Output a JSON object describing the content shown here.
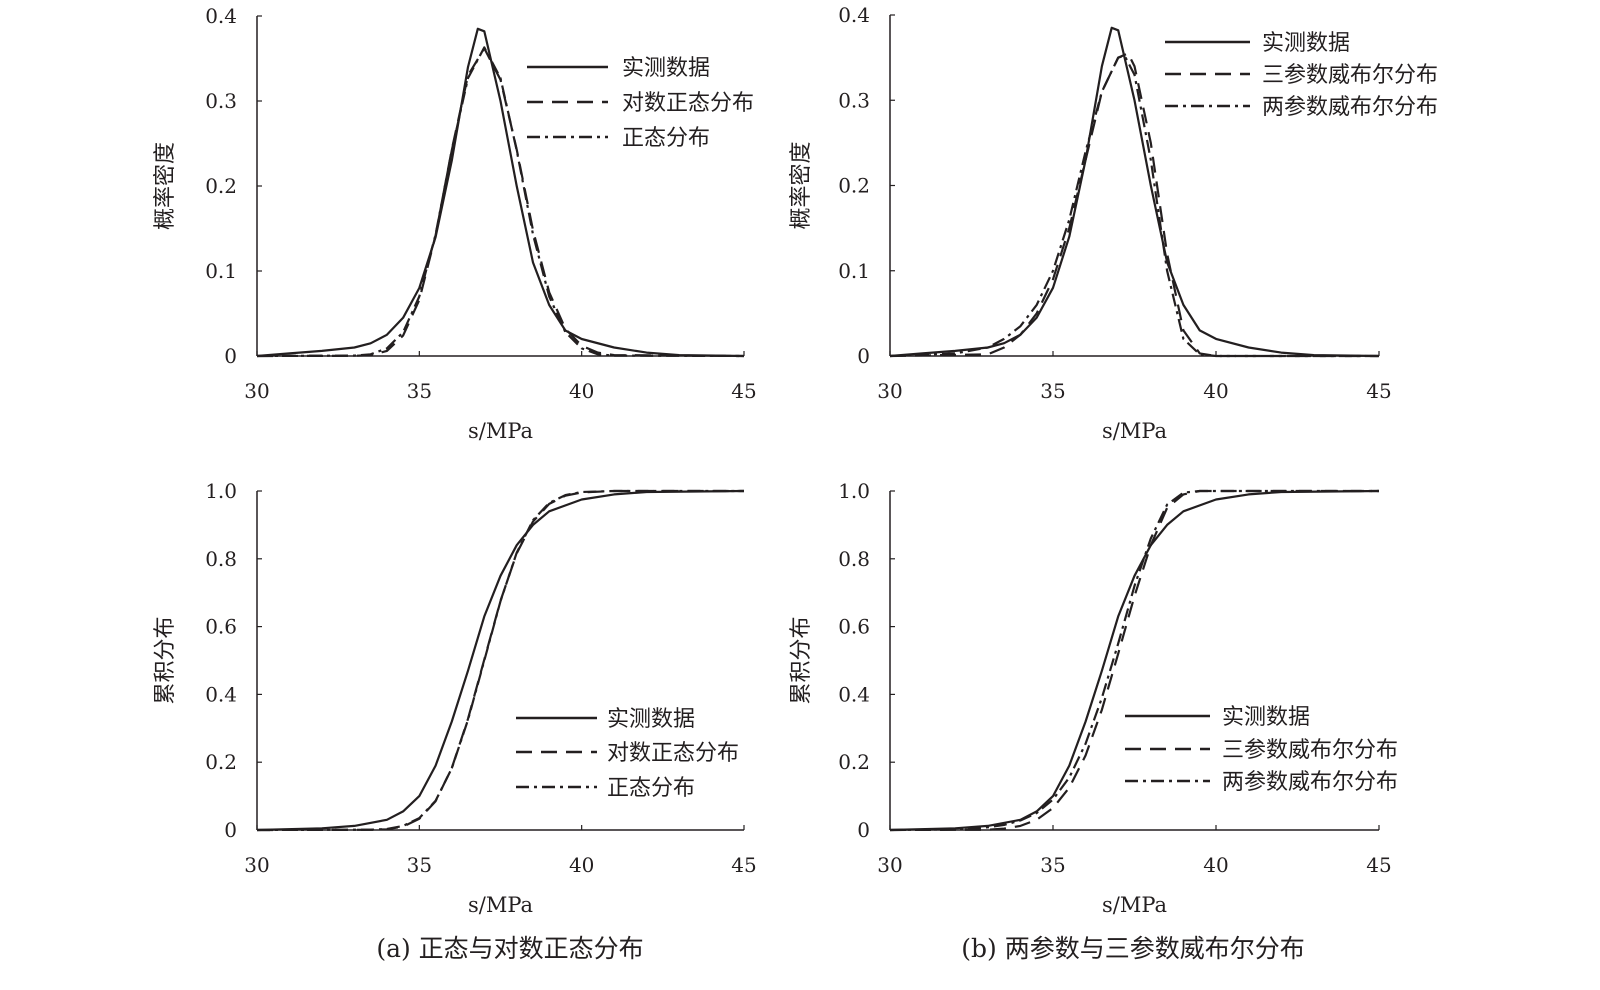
{
  "chart_data": [
    {
      "type": "line",
      "panel": "a-top",
      "xlabel": "s/MPa",
      "ylabel": "概率密度",
      "xlim": [
        30,
        45
      ],
      "ylim": [
        0,
        0.4
      ],
      "xticks": [
        "30",
        "35",
        "40",
        "45"
      ],
      "yticks": [
        "0",
        "0.1",
        "0.2",
        "0.3",
        "0.4"
      ],
      "legend_position": "top-right",
      "series": [
        {
          "name": "实测数据",
          "style": "solid",
          "x": [
            30,
            31,
            32,
            33,
            33.5,
            34,
            34.5,
            35,
            35.5,
            36,
            36.5,
            36.8,
            37,
            37.5,
            38,
            38.5,
            39,
            39.5,
            40,
            41,
            42,
            43,
            45
          ],
          "y": [
            0,
            0.003,
            0.006,
            0.01,
            0.015,
            0.025,
            0.045,
            0.08,
            0.14,
            0.23,
            0.34,
            0.385,
            0.382,
            0.3,
            0.2,
            0.11,
            0.06,
            0.03,
            0.02,
            0.01,
            0.004,
            0.001,
            0
          ]
        },
        {
          "name": "对数正态分布",
          "style": "dashed",
          "x": [
            30,
            33,
            33.5,
            34,
            34.5,
            35,
            35.5,
            36,
            36.5,
            37,
            37.5,
            38,
            38.5,
            39,
            39.5,
            40,
            40.5,
            41,
            45
          ],
          "y": [
            0,
            0.0002,
            0.001,
            0.006,
            0.024,
            0.066,
            0.142,
            0.243,
            0.33,
            0.362,
            0.325,
            0.243,
            0.148,
            0.075,
            0.032,
            0.012,
            0.004,
            0.001,
            0
          ]
        },
        {
          "name": "正态分布",
          "style": "dashdot",
          "x": [
            30,
            33,
            33.5,
            34,
            34.5,
            35,
            35.5,
            36,
            36.5,
            37,
            37.5,
            38,
            38.5,
            39,
            39.5,
            40,
            40.5,
            41,
            45
          ],
          "y": [
            0,
            0.0005,
            0.002,
            0.009,
            0.028,
            0.07,
            0.143,
            0.242,
            0.327,
            0.363,
            0.327,
            0.242,
            0.143,
            0.07,
            0.028,
            0.009,
            0.002,
            0.0005,
            0
          ]
        }
      ]
    },
    {
      "type": "line",
      "panel": "b-top",
      "xlabel": "s/MPa",
      "ylabel": "概率密度",
      "xlim": [
        30,
        45
      ],
      "ylim": [
        0,
        0.4
      ],
      "xticks": [
        "30",
        "35",
        "40",
        "45"
      ],
      "yticks": [
        "0",
        "0.1",
        "0.2",
        "0.3",
        "0.4"
      ],
      "legend_position": "top-right",
      "series": [
        {
          "name": "实测数据",
          "style": "solid",
          "x": [
            30,
            31,
            32,
            33,
            33.5,
            34,
            34.5,
            35,
            35.5,
            36,
            36.5,
            36.8,
            37,
            37.5,
            38,
            38.5,
            39,
            39.5,
            40,
            41,
            42,
            43,
            45
          ],
          "y": [
            0,
            0.003,
            0.006,
            0.01,
            0.015,
            0.025,
            0.045,
            0.08,
            0.14,
            0.23,
            0.34,
            0.385,
            0.382,
            0.3,
            0.2,
            0.11,
            0.06,
            0.03,
            0.02,
            0.01,
            0.004,
            0.001,
            0
          ]
        },
        {
          "name": "三参数威布尔分布",
          "style": "dashed",
          "x": [
            30,
            33,
            33.5,
            34,
            34.5,
            35,
            35.5,
            36,
            36.5,
            37,
            37.3,
            37.5,
            38,
            38.5,
            39,
            39.5,
            40,
            45
          ],
          "y": [
            0,
            0.002,
            0.01,
            0.025,
            0.05,
            0.09,
            0.15,
            0.23,
            0.31,
            0.35,
            0.355,
            0.34,
            0.25,
            0.12,
            0.03,
            0.003,
            0,
            0
          ]
        },
        {
          "name": "两参数威布尔分布",
          "style": "dashdot",
          "x": [
            30,
            32,
            33,
            33.5,
            34,
            34.5,
            35,
            35.5,
            36,
            36.5,
            37,
            37.2,
            37.5,
            38,
            38.5,
            39,
            39.5,
            40,
            45
          ],
          "y": [
            0,
            0.003,
            0.01,
            0.02,
            0.035,
            0.06,
            0.1,
            0.16,
            0.24,
            0.31,
            0.35,
            0.352,
            0.33,
            0.23,
            0.1,
            0.02,
            0.002,
            0,
            0
          ]
        }
      ]
    },
    {
      "type": "line",
      "panel": "a-bottom",
      "xlabel": "s/MPa",
      "ylabel": "累积分布",
      "xlim": [
        30,
        45
      ],
      "ylim": [
        0,
        1.0
      ],
      "xticks": [
        "30",
        "35",
        "40",
        "45"
      ],
      "yticks": [
        "0",
        "0.2",
        "0.4",
        "0.6",
        "0.8",
        "1.0"
      ],
      "legend_position": "bottom-right",
      "series": [
        {
          "name": "实测数据",
          "style": "solid",
          "x": [
            30,
            32,
            33,
            34,
            34.5,
            35,
            35.5,
            36,
            36.5,
            37,
            37.5,
            38,
            38.5,
            39,
            40,
            41,
            42,
            45
          ],
          "y": [
            0,
            0.005,
            0.012,
            0.03,
            0.055,
            0.1,
            0.19,
            0.32,
            0.47,
            0.63,
            0.75,
            0.84,
            0.9,
            0.94,
            0.975,
            0.99,
            0.997,
            1
          ]
        },
        {
          "name": "对数正态分布",
          "style": "dashed",
          "x": [
            30,
            33.5,
            34,
            34.5,
            35,
            35.5,
            36,
            36.5,
            37,
            37.5,
            38,
            38.5,
            39,
            39.5,
            40,
            41,
            45
          ],
          "y": [
            0,
            0.0005,
            0.002,
            0.01,
            0.033,
            0.085,
            0.183,
            0.328,
            0.503,
            0.676,
            0.816,
            0.91,
            0.962,
            0.986,
            0.996,
            1,
            1
          ]
        },
        {
          "name": "正态分布",
          "style": "dashdot",
          "x": [
            30,
            33.5,
            34,
            34.5,
            35,
            35.5,
            36,
            36.5,
            37,
            37.5,
            38,
            38.5,
            39,
            39.5,
            40,
            41,
            45
          ],
          "y": [
            0,
            0.001,
            0.003,
            0.012,
            0.035,
            0.086,
            0.182,
            0.325,
            0.5,
            0.675,
            0.818,
            0.914,
            0.965,
            0.988,
            0.997,
            1,
            1
          ]
        }
      ]
    },
    {
      "type": "line",
      "panel": "b-bottom",
      "xlabel": "s/MPa",
      "ylabel": "累积分布",
      "xlim": [
        30,
        45
      ],
      "ylim": [
        0,
        1.0
      ],
      "xticks": [
        "30",
        "35",
        "40",
        "45"
      ],
      "yticks": [
        "0",
        "0.2",
        "0.4",
        "0.6",
        "0.8",
        "1.0"
      ],
      "legend_position": "bottom-right",
      "series": [
        {
          "name": "实测数据",
          "style": "solid",
          "x": [
            30,
            32,
            33,
            34,
            34.5,
            35,
            35.5,
            36,
            36.5,
            37,
            37.5,
            38,
            38.5,
            39,
            40,
            41,
            42,
            45
          ],
          "y": [
            0,
            0.005,
            0.012,
            0.03,
            0.055,
            0.1,
            0.19,
            0.32,
            0.47,
            0.63,
            0.75,
            0.84,
            0.9,
            0.94,
            0.975,
            0.99,
            0.997,
            1
          ]
        },
        {
          "name": "三参数威布尔分布",
          "style": "dashed",
          "x": [
            30,
            33,
            33.5,
            34,
            34.5,
            35,
            35.5,
            36,
            36.5,
            37,
            37.5,
            38,
            38.5,
            39,
            39.5,
            45
          ],
          "y": [
            0,
            0.001,
            0.004,
            0.012,
            0.03,
            0.065,
            0.125,
            0.22,
            0.355,
            0.52,
            0.69,
            0.84,
            0.95,
            0.99,
            1,
            1
          ]
        },
        {
          "name": "两参数威布尔分布",
          "style": "dashdot",
          "x": [
            30,
            32,
            33,
            33.5,
            34,
            34.5,
            35,
            35.5,
            36,
            36.5,
            37,
            37.5,
            38,
            38.5,
            39,
            39.5,
            45
          ],
          "y": [
            0,
            0.002,
            0.008,
            0.015,
            0.028,
            0.05,
            0.09,
            0.155,
            0.255,
            0.39,
            0.55,
            0.72,
            0.86,
            0.96,
            0.995,
            1,
            1
          ]
        }
      ]
    }
  ],
  "captions": {
    "a": "(a) 正态与对数正态分布",
    "b": "(b) 两参数与三参数威布尔分布"
  }
}
